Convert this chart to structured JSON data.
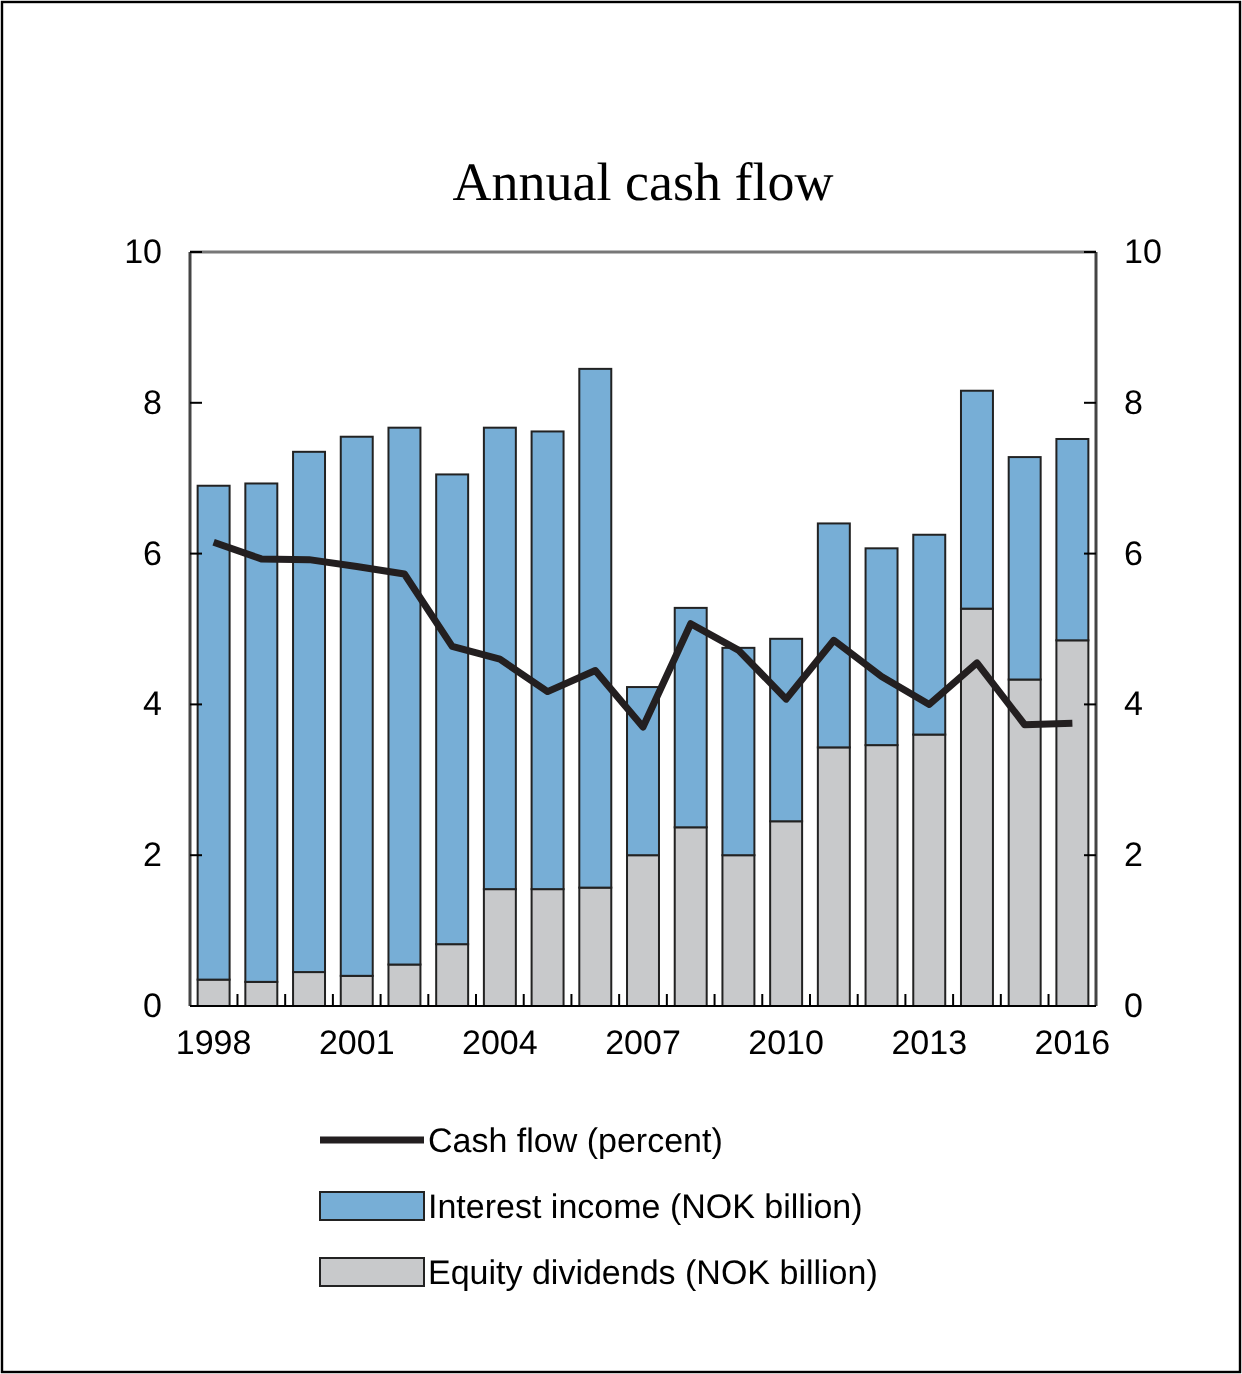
{
  "chart_data": {
    "type": "bar",
    "title": "Annual cash flow",
    "stacked": true,
    "categories": [
      "1998",
      null,
      null,
      "2001",
      null,
      null,
      "2004",
      null,
      null,
      "2007",
      null,
      null,
      "2010",
      null,
      null,
      "2013",
      null,
      null,
      "2016"
    ],
    "series": [
      {
        "name": "Equity dividends (NOK billion)",
        "color": "#c8c9cb",
        "values": [
          0.35,
          0.32,
          0.45,
          0.4,
          0.55,
          0.82,
          1.55,
          1.55,
          1.57,
          2.0,
          2.37,
          2.0,
          2.45,
          3.43,
          3.46,
          3.6,
          5.27,
          4.33,
          4.85
        ]
      },
      {
        "name": "Interest income (NOK billion)",
        "color": "#77aed6",
        "values": [
          6.55,
          6.61,
          6.9,
          7.15,
          7.12,
          6.23,
          6.12,
          6.07,
          6.88,
          2.23,
          2.91,
          2.75,
          2.42,
          2.97,
          2.61,
          2.65,
          2.89,
          2.95,
          2.67
        ]
      },
      {
        "name": "Cash flow (percent)",
        "type": "line",
        "color": "#231f20",
        "values": [
          6.15,
          5.93,
          5.92,
          5.83,
          5.73,
          4.77,
          4.6,
          4.17,
          4.45,
          3.7,
          5.07,
          4.72,
          4.07,
          4.85,
          4.37,
          4.0,
          4.55,
          3.73,
          3.75
        ]
      }
    ],
    "ylim": [
      0,
      10
    ],
    "yticks": [
      0,
      2,
      4,
      6,
      8,
      10
    ],
    "y2lim": [
      0,
      10
    ],
    "y2ticks": [
      0,
      2,
      4,
      6,
      8,
      10
    ],
    "grid": false,
    "legend": "bottom",
    "marker": "none",
    "line_style": "solid"
  }
}
